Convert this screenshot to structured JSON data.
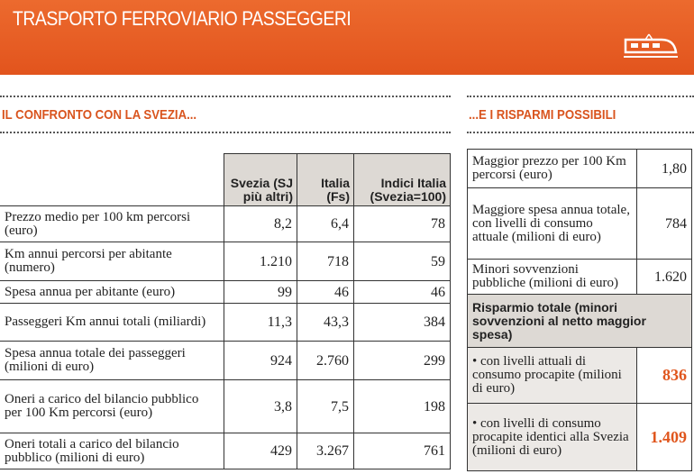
{
  "header": {
    "title": "TRASPORTO FERROVIARIO PASSEGGERI"
  },
  "left": {
    "title": "IL CONFRONTO CON LA SVEZIA...",
    "table": {
      "columns": [
        "Svezia (SJ più altri)",
        "Italia (Fs)",
        "Indici Italia (Svezia=100)"
      ],
      "rows": [
        [
          "Prezzo medio per 100 km percorsi (euro)",
          "8,2",
          "6,4",
          "78"
        ],
        [
          "Km annui percorsi per abitante (numero)",
          "1.210",
          "718",
          "59"
        ],
        [
          "Spesa annua per abitante (euro)",
          "99",
          "46",
          "46"
        ],
        [
          "Passeggeri Km annui totali (miliardi)",
          "11,3",
          "43,3",
          "384"
        ],
        [
          "Spesa annua totale dei passeggeri (milioni di euro)",
          "924",
          "2.760",
          "299"
        ],
        [
          "Oneri a carico del bilancio pubblico per 100 Km percorsi (euro)",
          "3,8",
          "7,5",
          "198"
        ],
        [
          "Oneri totali a carico del bilancio pubblico (milioni di euro)",
          "429",
          "3.267",
          "761"
        ]
      ]
    }
  },
  "right": {
    "title": "...E I RISPARMI POSSIBILI",
    "table": {
      "rows": [
        [
          "Maggior prezzo per 100 Km percorsi (euro)",
          "1,80"
        ],
        [
          "Maggiore spesa annua totale, con livelli di consumo attuale (milioni di euro)",
          "784"
        ],
        [
          "Minori sovvenzioni pubbliche (milioni di euro)",
          "1.620"
        ]
      ],
      "total_heading": "Risparmio totale (minori sovvenzioni al netto maggior spesa)",
      "items": [
        [
          "con livelli attuali di consumo procapite (milioni di euro)",
          "836"
        ],
        [
          "con livelli di consumo procapite identici alla Svezia (milioni di euro)",
          "1.409"
        ]
      ]
    }
  }
}
